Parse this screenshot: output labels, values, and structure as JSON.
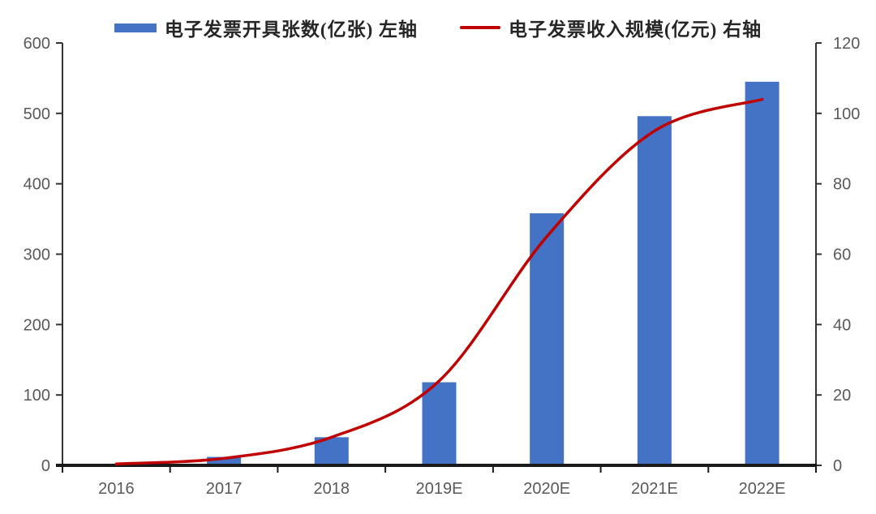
{
  "page": {
    "background": "#ffffff"
  },
  "legend": {
    "bar_label": "电子发票开具张数(亿张) 左轴",
    "line_label": "电子发票收入规模(亿元) 右轴"
  },
  "chart_data": {
    "type": "combo",
    "subtypes": [
      "bar",
      "line"
    ],
    "categories": [
      "2016",
      "2017",
      "2018",
      "2019E",
      "2020E",
      "2021E",
      "2022E"
    ],
    "series": [
      {
        "name": "电子发票开具张数(亿张) 左轴",
        "type": "bar",
        "axis": "left",
        "color": "#4472C4",
        "values": [
          2,
          12,
          40,
          118,
          358,
          496,
          545
        ]
      },
      {
        "name": "电子发票收入规模(亿元) 右轴",
        "type": "line",
        "axis": "right",
        "color": "#C00000",
        "values": [
          0.4,
          2,
          8,
          24,
          65,
          95,
          104
        ]
      }
    ],
    "axes": {
      "left": {
        "min": 0,
        "max": 600,
        "step": 100,
        "tick_labels": [
          "0",
          "100",
          "200",
          "300",
          "400",
          "500",
          "600"
        ]
      },
      "right": {
        "min": 0,
        "max": 120,
        "step": 20,
        "tick_labels": [
          "0",
          "20",
          "40",
          "60",
          "80",
          "100",
          "120"
        ]
      },
      "x": {
        "tick_labels": [
          "2016",
          "2017",
          "2018",
          "2019E",
          "2020E",
          "2021E",
          "2022E"
        ]
      }
    },
    "grid": false,
    "legend_position": "top-center",
    "title": "",
    "xlabel": "",
    "ylabel_left": "",
    "ylabel_right": ""
  },
  "style": {
    "axis_line_color": "#333333",
    "baseline_color": "#1a1a1a",
    "tick_label_color": "#595959",
    "legend_text_color": "#262626"
  }
}
